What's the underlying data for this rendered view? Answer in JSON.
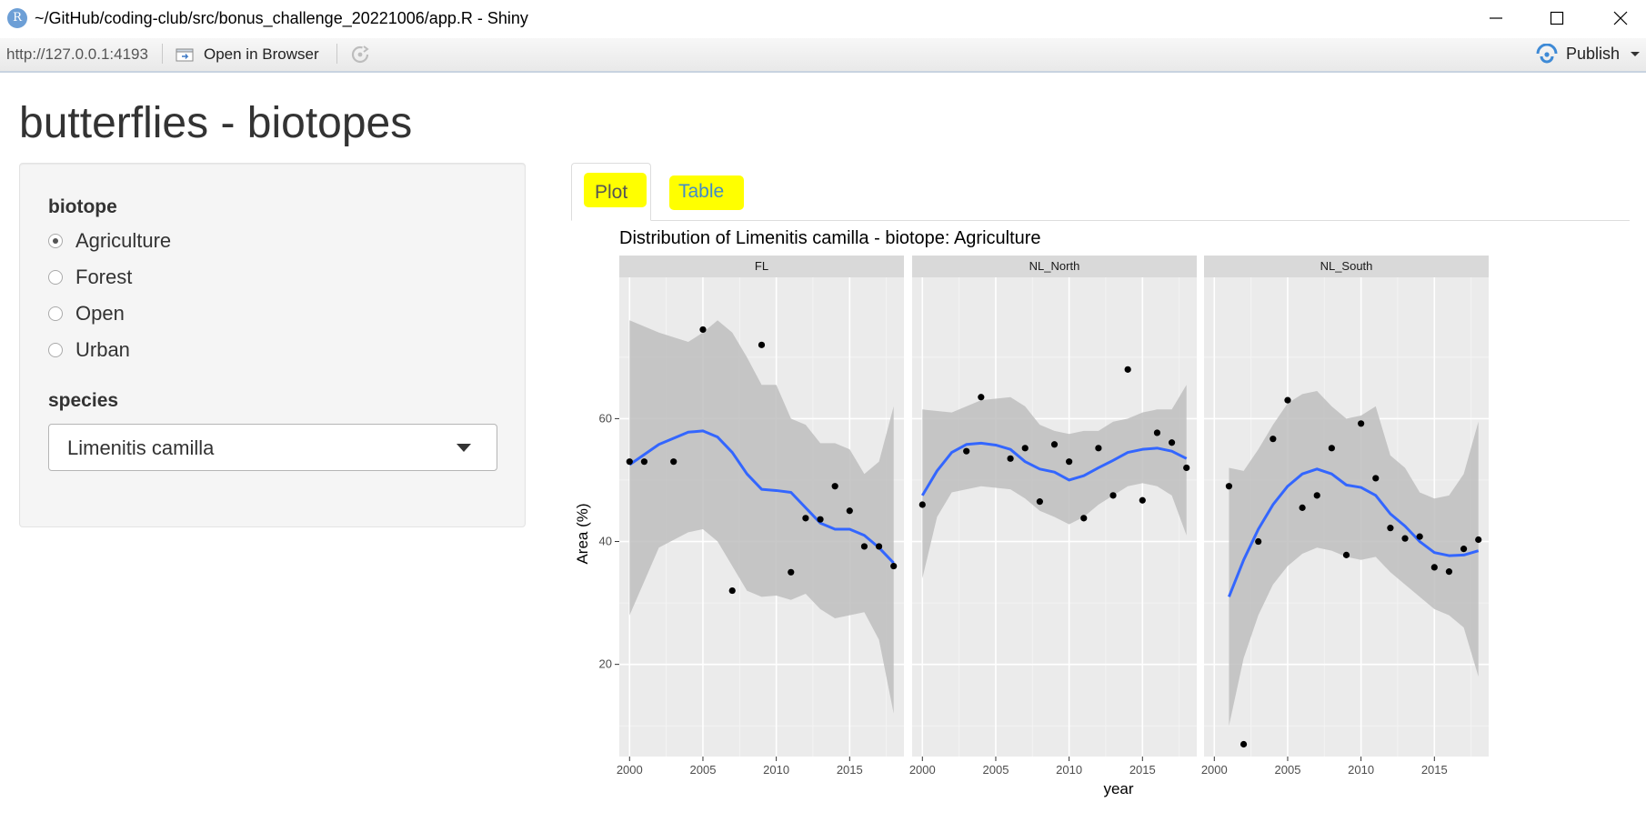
{
  "window": {
    "icon_letter": "R",
    "title": "~/GitHub/coding-club/src/bonus_challenge_20221006/app.R - Shiny"
  },
  "toolbar": {
    "url": "http://127.0.0.1:4193",
    "open_in_browser": "Open in Browser",
    "publish": "Publish"
  },
  "page": {
    "title": "butterflies - biotopes"
  },
  "sidebar": {
    "biotope_label": "biotope",
    "biotope_options": [
      "Agriculture",
      "Forest",
      "Open",
      "Urban"
    ],
    "biotope_selected": "Agriculture",
    "species_label": "species",
    "species_selected": "Limenitis camilla"
  },
  "tabs": {
    "plot": "Plot",
    "table": "Table",
    "active": "Plot",
    "highlight_color": "#ffff00"
  },
  "chart_data": {
    "type": "scatter",
    "title": "Distribution of  Limenitis camilla - biotope:  Agriculture",
    "xlabel": "year",
    "ylabel": "Area (%)",
    "xlim": [
      1999.3,
      2018.7
    ],
    "ylim": [
      5,
      83
    ],
    "x_ticks": [
      2000,
      2005,
      2010,
      2015
    ],
    "y_ticks": [
      20,
      40,
      60
    ],
    "grid": true,
    "point_color": "#000000",
    "smooth_color": "#3366ff",
    "ribbon_color": "#bebebe",
    "panels": [
      {
        "name": "FL",
        "points": [
          [
            2000,
            53
          ],
          [
            2001,
            53
          ],
          [
            2003,
            53
          ],
          [
            2005,
            74.5
          ],
          [
            2007,
            32
          ],
          [
            2009,
            72
          ],
          [
            2011,
            35
          ],
          [
            2012,
            43.8
          ],
          [
            2013,
            43.6
          ],
          [
            2014,
            49
          ],
          [
            2015,
            45
          ],
          [
            2016,
            39.2
          ],
          [
            2017,
            39.2
          ],
          [
            2018,
            36
          ]
        ],
        "smooth": [
          [
            2000,
            52.5
          ],
          [
            2002,
            55.8
          ],
          [
            2004,
            57.8
          ],
          [
            2005,
            58
          ],
          [
            2006,
            57
          ],
          [
            2007,
            54.5
          ],
          [
            2008,
            51
          ],
          [
            2009,
            48.5
          ],
          [
            2010,
            48.3
          ],
          [
            2011,
            48
          ],
          [
            2012,
            45.5
          ],
          [
            2013,
            43
          ],
          [
            2014,
            42
          ],
          [
            2015,
            42
          ],
          [
            2016,
            41
          ],
          [
            2017,
            39
          ],
          [
            2018,
            36.5
          ]
        ],
        "ribbon_upper": [
          [
            2000,
            76
          ],
          [
            2002,
            74
          ],
          [
            2004,
            72.5
          ],
          [
            2005,
            74
          ],
          [
            2006,
            76
          ],
          [
            2007,
            74
          ],
          [
            2008,
            70
          ],
          [
            2009,
            65.5
          ],
          [
            2010,
            65.5
          ],
          [
            2011,
            60
          ],
          [
            2012,
            59
          ],
          [
            2013,
            56
          ],
          [
            2014,
            56
          ],
          [
            2015,
            55
          ],
          [
            2016,
            51
          ],
          [
            2017,
            53
          ],
          [
            2018,
            62
          ]
        ],
        "ribbon_lower": [
          [
            2000,
            28
          ],
          [
            2002,
            39
          ],
          [
            2004,
            41.5
          ],
          [
            2005,
            42
          ],
          [
            2006,
            40
          ],
          [
            2007,
            36
          ],
          [
            2008,
            32
          ],
          [
            2009,
            31
          ],
          [
            2010,
            31.2
          ],
          [
            2011,
            30.5
          ],
          [
            2012,
            31.5
          ],
          [
            2013,
            29
          ],
          [
            2014,
            27.5
          ],
          [
            2015,
            28
          ],
          [
            2016,
            28.5
          ],
          [
            2017,
            24
          ],
          [
            2018,
            12
          ]
        ]
      },
      {
        "name": "NL_North",
        "points": [
          [
            2000,
            46
          ],
          [
            2003,
            54.7
          ],
          [
            2004,
            63.5
          ],
          [
            2006,
            53.5
          ],
          [
            2007,
            55.2
          ],
          [
            2008,
            46.5
          ],
          [
            2009,
            55.8
          ],
          [
            2010,
            53
          ],
          [
            2011,
            43.8
          ],
          [
            2012,
            55.2
          ],
          [
            2013,
            47.5
          ],
          [
            2014,
            68
          ],
          [
            2015,
            46.7
          ],
          [
            2016,
            57.7
          ],
          [
            2017,
            56.1
          ],
          [
            2018,
            52
          ]
        ],
        "smooth": [
          [
            2000,
            47.5
          ],
          [
            2001,
            51.5
          ],
          [
            2002,
            54.5
          ],
          [
            2003,
            55.8
          ],
          [
            2004,
            56
          ],
          [
            2005,
            55.7
          ],
          [
            2006,
            55
          ],
          [
            2007,
            53
          ],
          [
            2008,
            51.8
          ],
          [
            2009,
            51.3
          ],
          [
            2010,
            50
          ],
          [
            2011,
            50.7
          ],
          [
            2012,
            52
          ],
          [
            2013,
            53.2
          ],
          [
            2014,
            54.5
          ],
          [
            2015,
            55
          ],
          [
            2016,
            55.2
          ],
          [
            2017,
            54.7
          ],
          [
            2018,
            53.5
          ]
        ],
        "ribbon_upper": [
          [
            2000,
            61.5
          ],
          [
            2002,
            61
          ],
          [
            2004,
            63
          ],
          [
            2006,
            63.5
          ],
          [
            2007,
            62
          ],
          [
            2008,
            59
          ],
          [
            2009,
            58
          ],
          [
            2010,
            57.5
          ],
          [
            2011,
            58
          ],
          [
            2012,
            58
          ],
          [
            2013,
            59.5
          ],
          [
            2014,
            60
          ],
          [
            2015,
            61
          ],
          [
            2016,
            61.5
          ],
          [
            2017,
            61.5
          ],
          [
            2018,
            65.5
          ]
        ],
        "ribbon_lower": [
          [
            2000,
            34
          ],
          [
            2001,
            44
          ],
          [
            2002,
            48
          ],
          [
            2004,
            49
          ],
          [
            2006,
            48.5
          ],
          [
            2007,
            47
          ],
          [
            2008,
            45
          ],
          [
            2009,
            44
          ],
          [
            2010,
            42.8
          ],
          [
            2011,
            44
          ],
          [
            2012,
            46
          ],
          [
            2013,
            47.5
          ],
          [
            2014,
            49
          ],
          [
            2015,
            49.5
          ],
          [
            2016,
            49
          ],
          [
            2017,
            47.5
          ],
          [
            2018,
            41
          ]
        ]
      },
      {
        "name": "NL_South",
        "points": [
          [
            2001,
            49
          ],
          [
            2002,
            7
          ],
          [
            2003,
            40
          ],
          [
            2004,
            56.7
          ],
          [
            2005,
            63
          ],
          [
            2006,
            45.5
          ],
          [
            2007,
            47.5
          ],
          [
            2008,
            55.2
          ],
          [
            2009,
            37.8
          ],
          [
            2010,
            59.2
          ],
          [
            2011,
            50.3
          ],
          [
            2012,
            42.2
          ],
          [
            2013,
            40.5
          ],
          [
            2014,
            40.8
          ],
          [
            2015,
            35.8
          ],
          [
            2016,
            35.1
          ],
          [
            2017,
            38.8
          ],
          [
            2018,
            40.3
          ]
        ],
        "smooth": [
          [
            2001,
            31
          ],
          [
            2002,
            37
          ],
          [
            2003,
            42
          ],
          [
            2004,
            46
          ],
          [
            2005,
            49
          ],
          [
            2006,
            51
          ],
          [
            2007,
            51.8
          ],
          [
            2008,
            51
          ],
          [
            2009,
            49.2
          ],
          [
            2010,
            48.8
          ],
          [
            2011,
            47.5
          ],
          [
            2012,
            44.5
          ],
          [
            2013,
            42.5
          ],
          [
            2014,
            40
          ],
          [
            2015,
            38.2
          ],
          [
            2016,
            37.7
          ],
          [
            2017,
            37.8
          ],
          [
            2018,
            38.5
          ]
        ],
        "ribbon_upper": [
          [
            2001,
            52
          ],
          [
            2002,
            51.5
          ],
          [
            2003,
            55
          ],
          [
            2004,
            59
          ],
          [
            2005,
            62.5
          ],
          [
            2006,
            64
          ],
          [
            2007,
            64.5
          ],
          [
            2008,
            62
          ],
          [
            2009,
            60
          ],
          [
            2010,
            60.5
          ],
          [
            2011,
            62
          ],
          [
            2012,
            54
          ],
          [
            2013,
            52
          ],
          [
            2014,
            48
          ],
          [
            2015,
            47
          ],
          [
            2016,
            47.5
          ],
          [
            2017,
            51
          ],
          [
            2018,
            59.5
          ]
        ],
        "ribbon_lower": [
          [
            2001,
            10
          ],
          [
            2002,
            21
          ],
          [
            2003,
            28
          ],
          [
            2004,
            33
          ],
          [
            2005,
            36
          ],
          [
            2006,
            38
          ],
          [
            2007,
            39
          ],
          [
            2008,
            38.5
          ],
          [
            2009,
            37.5
          ],
          [
            2010,
            37
          ],
          [
            2011,
            37.5
          ],
          [
            2012,
            35
          ],
          [
            2013,
            33
          ],
          [
            2014,
            31
          ],
          [
            2015,
            29
          ],
          [
            2016,
            28
          ],
          [
            2017,
            26
          ],
          [
            2018,
            18
          ]
        ]
      }
    ]
  }
}
